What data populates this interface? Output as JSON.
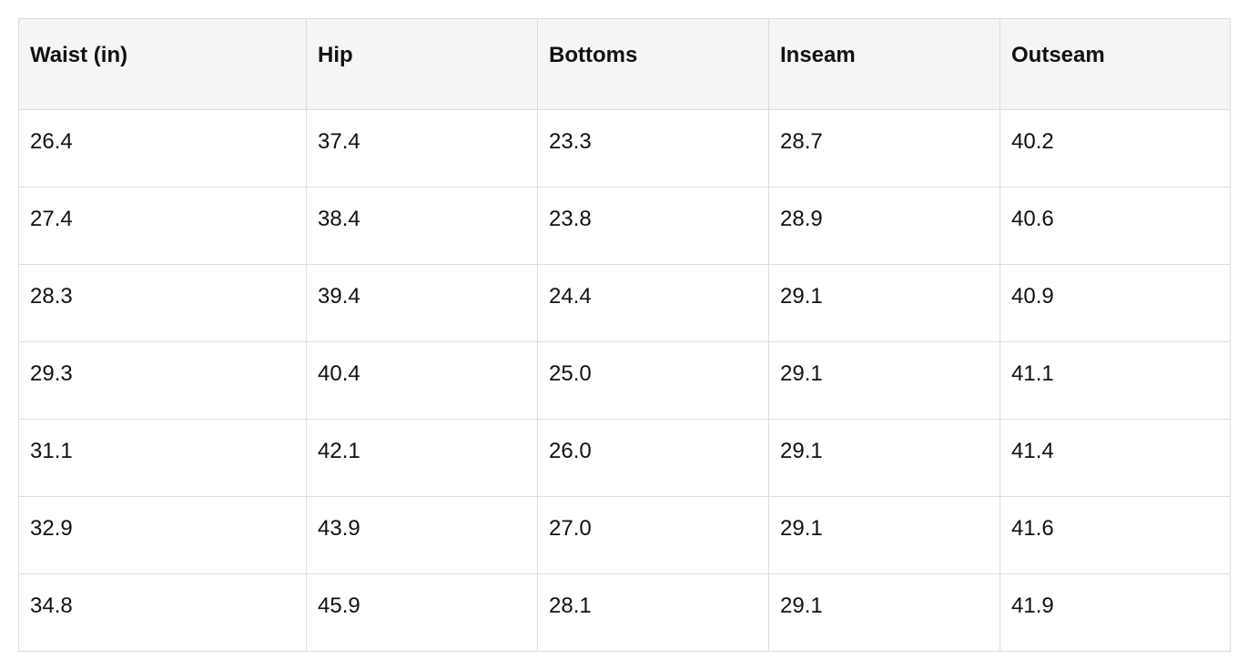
{
  "table": {
    "header": [
      "Waist (in)",
      "Hip",
      "Bottoms",
      "Inseam",
      "Outseam"
    ],
    "rows": [
      [
        "26.4",
        "37.4",
        "23.3",
        "28.7",
        "40.2"
      ],
      [
        "27.4",
        "38.4",
        "23.8",
        "28.9",
        "40.6"
      ],
      [
        "28.3",
        "39.4",
        "24.4",
        "29.1",
        "40.9"
      ],
      [
        "29.3",
        "40.4",
        "25.0",
        "29.1",
        "41.1"
      ],
      [
        "31.1",
        "42.1",
        "26.0",
        "29.1",
        "41.4"
      ],
      [
        "32.9",
        "43.9",
        "27.0",
        "29.1",
        "41.6"
      ],
      [
        "34.8",
        "45.9",
        "28.1",
        "29.1",
        "41.9"
      ]
    ]
  }
}
